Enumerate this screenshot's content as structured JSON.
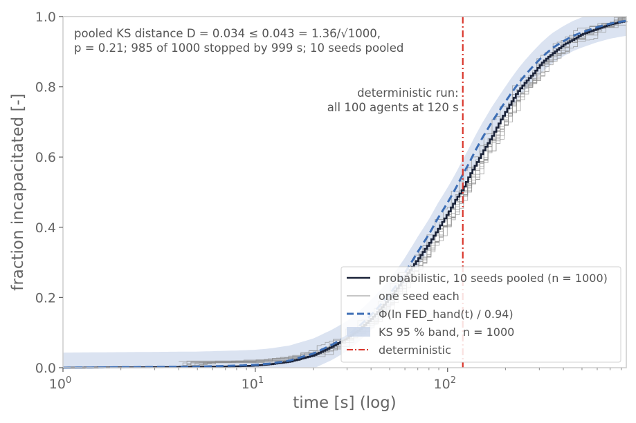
{
  "chart_data": {
    "type": "line",
    "xlabel": "time [s] (log)",
    "ylabel": "fraction incapacitated [-]",
    "x_scale": "log",
    "xlim": [
      1,
      850
    ],
    "ylim": [
      0,
      1.0
    ],
    "x_ticks": [
      {
        "value": 1,
        "base": "10",
        "exp": "0"
      },
      {
        "value": 10,
        "base": "10",
        "exp": "1"
      },
      {
        "value": 100,
        "base": "10",
        "exp": "2"
      }
    ],
    "y_ticks": [
      "0.0",
      "0.2",
      "0.4",
      "0.6",
      "0.8",
      "1.0"
    ],
    "grid": false,
    "legend_position": "lower-right",
    "annotations": {
      "stats_line1": "pooled KS distance D = 0.034 ≤ 0.043 = 1.36/√1000,",
      "stats_line2": "p = 0.21; 985 of 1000 stopped by 999 s; 10 seeds pooled",
      "det_line1": "deterministic run:",
      "det_line2": "all 100 agents at 120 s"
    },
    "deterministic_x": 120,
    "series": [
      {
        "name": "probabilistic, 10 seeds pooled (n = 1000)",
        "color": "#1a2238",
        "style": "solid-step",
        "x": [
          1,
          5,
          8,
          10,
          12,
          15,
          20,
          25,
          30,
          35,
          40,
          45,
          50,
          55,
          60,
          70,
          80,
          90,
          100,
          110,
          120,
          130,
          140,
          150,
          170,
          190,
          210,
          230,
          250,
          280,
          310,
          350,
          400,
          450,
          500,
          600,
          700,
          800,
          850
        ],
        "y": [
          0.0,
          0.002,
          0.004,
          0.006,
          0.01,
          0.017,
          0.035,
          0.06,
          0.085,
          0.11,
          0.14,
          0.17,
          0.2,
          0.23,
          0.26,
          0.31,
          0.355,
          0.4,
          0.44,
          0.48,
          0.51,
          0.55,
          0.58,
          0.61,
          0.66,
          0.71,
          0.75,
          0.785,
          0.81,
          0.84,
          0.87,
          0.895,
          0.92,
          0.935,
          0.95,
          0.965,
          0.978,
          0.985,
          0.987
        ]
      },
      {
        "name": "one seed each",
        "color": "#8c8c8c",
        "style": "thin-step"
      },
      {
        "name": "Φ(ln FED_hand(t) / 0.94)",
        "color": "#3d6eb5",
        "style": "dashed",
        "x": [
          1,
          5,
          8,
          10,
          12,
          15,
          20,
          25,
          30,
          35,
          40,
          45,
          50,
          55,
          60,
          70,
          80,
          90,
          100,
          110,
          120,
          130,
          140,
          150,
          170,
          190,
          210,
          230,
          250,
          280,
          310,
          350,
          400,
          450,
          500,
          600,
          700,
          800,
          850
        ],
        "y": [
          0.0,
          0.003,
          0.006,
          0.008,
          0.012,
          0.02,
          0.04,
          0.065,
          0.09,
          0.12,
          0.15,
          0.18,
          0.21,
          0.24,
          0.27,
          0.33,
          0.38,
          0.43,
          0.47,
          0.51,
          0.55,
          0.585,
          0.62,
          0.65,
          0.7,
          0.74,
          0.775,
          0.805,
          0.83,
          0.86,
          0.885,
          0.91,
          0.93,
          0.945,
          0.955,
          0.97,
          0.98,
          0.986,
          0.988
        ]
      },
      {
        "name": "KS 95 % band, n = 1000",
        "color": "#c8d4ea",
        "style": "band",
        "halfwidth": 0.043
      },
      {
        "name": "deterministic",
        "color": "#d9352b",
        "style": "dashdot"
      }
    ]
  }
}
